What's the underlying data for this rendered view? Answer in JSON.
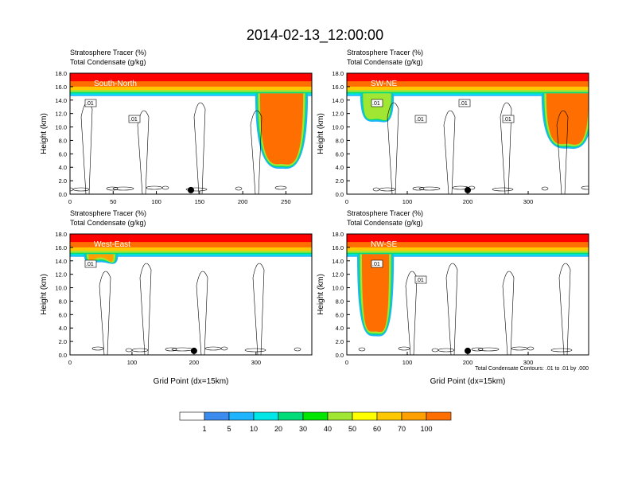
{
  "title": "2014-02-13_12:00:00",
  "chart_data": [
    {
      "type": "heatmap",
      "field1": "Stratosphere Tracer",
      "field1_unit": "(%)",
      "field2": "Total Condensate",
      "field2_unit": "(g/kg)",
      "label": "South-North",
      "ylabel": "Height (km)",
      "xlabel": "",
      "xlim": [
        0,
        280
      ],
      "ylim": [
        0,
        18
      ],
      "x_ticks": [
        "0",
        "50",
        "100",
        "150",
        "200",
        "250"
      ],
      "y_ticks": [
        "0.0",
        "2.0",
        "4.0",
        "6.0",
        "8.0",
        "10.0",
        "12.0",
        "14.0",
        "16.0",
        "18.0"
      ],
      "contour_labels": [
        ".01",
        ".01"
      ],
      "marker_x": 140,
      "tracer_base_km": 15.0,
      "intrusions": [
        {
          "x": [
            220,
            270
          ],
          "bottom_km": 4.5,
          "peak": 90
        }
      ]
    },
    {
      "type": "heatmap",
      "field1": "Stratosphere Tracer",
      "field1_unit": "(%)",
      "field2": "Total Condensate",
      "field2_unit": "(g/kg)",
      "label": "SW-NE",
      "ylabel": "Height (km)",
      "xlabel": "",
      "xlim": [
        0,
        400
      ],
      "ylim": [
        0,
        18
      ],
      "x_ticks": [
        "0",
        "100",
        "200",
        "300"
      ],
      "y_ticks": [
        "0.0",
        "2.0",
        "4.0",
        "6.0",
        "8.0",
        "10.0",
        "12.0",
        "14.0",
        "16.0",
        "18.0"
      ],
      "contour_labels": [
        ".01",
        ".01",
        ".01",
        ".01"
      ],
      "marker_x": 200,
      "tracer_base_km": 15.0,
      "intrusions": [
        {
          "x": [
            330,
            400
          ],
          "bottom_km": 7.5,
          "peak": 85
        },
        {
          "x": [
            30,
            70
          ],
          "bottom_km": 11.5,
          "peak": 30
        }
      ]
    },
    {
      "type": "heatmap",
      "field1": "Stratosphere Tracer",
      "field1_unit": "(%)",
      "field2": "Total Condensate",
      "field2_unit": "(g/kg)",
      "label": "West-East",
      "ylabel": "Height (km)",
      "xlabel": "Grid Point (dx=15km)",
      "xlim": [
        0,
        390
      ],
      "ylim": [
        0,
        18
      ],
      "x_ticks": [
        "0",
        "100",
        "200",
        "300"
      ],
      "y_ticks": [
        "0.0",
        "2.0",
        "4.0",
        "6.0",
        "8.0",
        "10.0",
        "12.0",
        "14.0",
        "16.0",
        "18.0"
      ],
      "contour_labels": [
        ".01"
      ],
      "marker_x": 200,
      "tracer_base_km": 15.0,
      "intrusions": [
        {
          "x": [
            30,
            70
          ],
          "bottom_km": 14.5,
          "peak": 60
        }
      ]
    },
    {
      "type": "heatmap",
      "field1": "Stratosphere Tracer",
      "field1_unit": "(%)",
      "field2": "Total Condensate",
      "field2_unit": "(g/kg)",
      "label": "NW-SE",
      "ylabel": "Height (km)",
      "xlabel": "Grid Point (dx=15km)",
      "xlim": [
        0,
        400
      ],
      "ylim": [
        0,
        18
      ],
      "x_ticks": [
        "0",
        "100",
        "200",
        "300"
      ],
      "y_ticks": [
        "0.0",
        "2.0",
        "4.0",
        "6.0",
        "8.0",
        "10.0",
        "12.0",
        "14.0",
        "16.0",
        "18.0"
      ],
      "contour_labels": [
        ".01",
        ".01"
      ],
      "marker_x": 200,
      "tracer_base_km": 15.0,
      "contour_note": "Total Condensate Contours: .01 to .01 by .000",
      "intrusions": [
        {
          "x": [
            25,
            70
          ],
          "bottom_km": 3.5,
          "peak": 80
        }
      ]
    }
  ],
  "colorbar": {
    "labels": [
      "1",
      "5",
      "10",
      "20",
      "30",
      "40",
      "50",
      "60",
      "70",
      "100"
    ],
    "colors": [
      "#ffffff",
      "#3c8cf0",
      "#1eb4ff",
      "#00e6e6",
      "#00dc78",
      "#00e600",
      "#a0e632",
      "#ffff00",
      "#ffc800",
      "#ffa000",
      "#ff6e00",
      "#ff0000"
    ]
  }
}
